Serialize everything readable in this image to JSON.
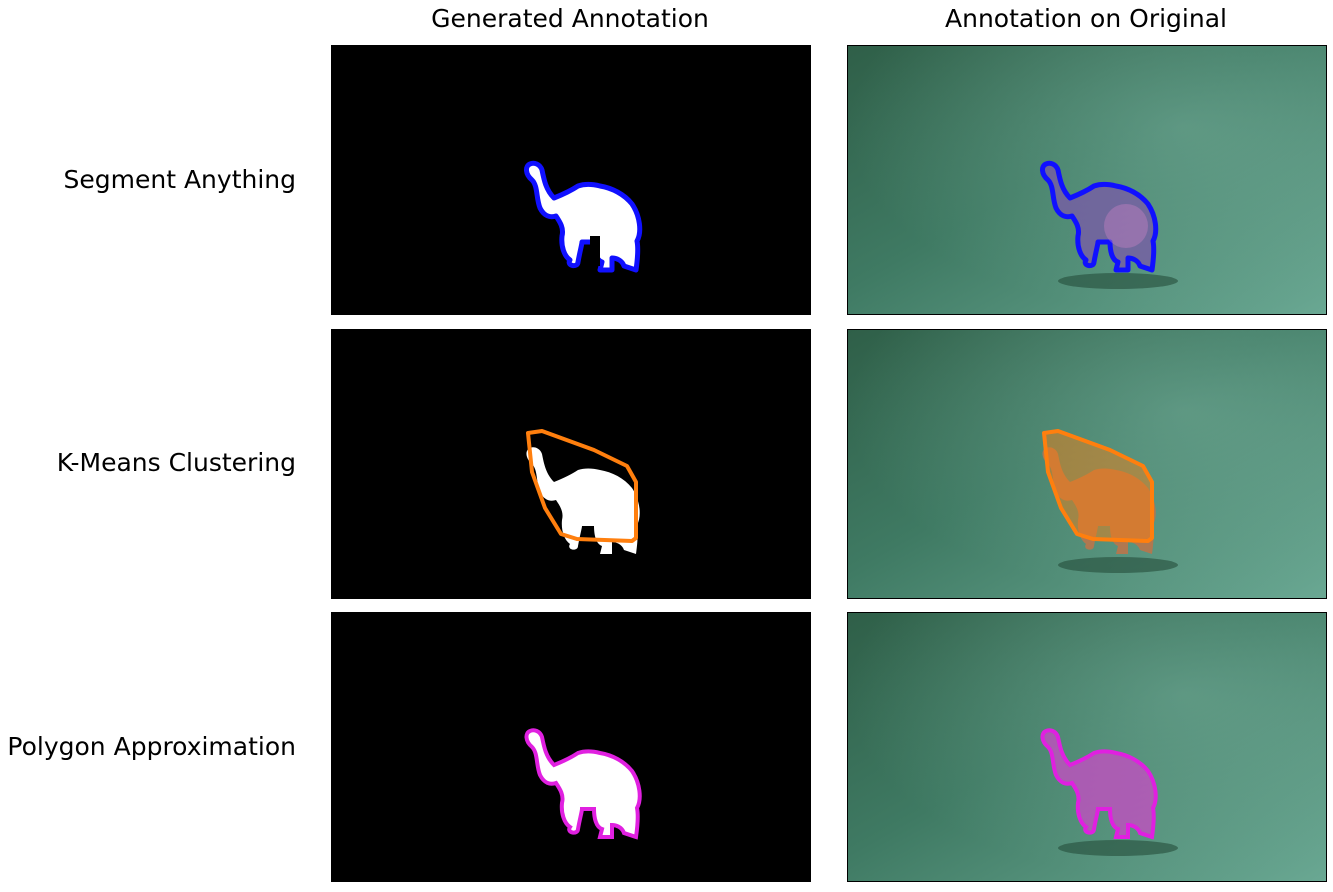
{
  "columns": [
    "Generated Annotation",
    "Annotation on Original"
  ],
  "rows": [
    {
      "label": "Segment Anything",
      "color": "#1010ff"
    },
    {
      "label": "K-Means Clustering",
      "color": "#ff7f0e"
    },
    {
      "label": "Polygon Approximation",
      "color": "#e020e0"
    }
  ],
  "colors": {
    "mask": "#ffffff",
    "background": "#000000",
    "scene": "#3f7a63"
  }
}
